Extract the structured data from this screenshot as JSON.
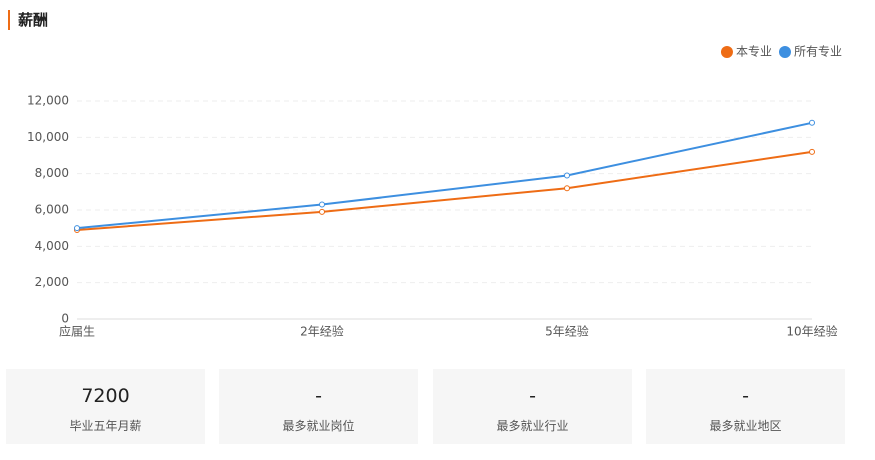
{
  "header": {
    "title": "薪酬"
  },
  "chart_data": {
    "type": "line",
    "categories": [
      "应届生",
      "2年经验",
      "5年经验",
      "10年经验"
    ],
    "series": [
      {
        "name": "本专业",
        "color": "#ee6c15",
        "values": [
          4900,
          5900,
          7200,
          9200
        ]
      },
      {
        "name": "所有专业",
        "color": "#3d8fe0",
        "values": [
          5000,
          6300,
          7900,
          10800
        ]
      }
    ],
    "ylim": [
      0,
      12000
    ],
    "yticks": [
      0,
      {
        "value": 2000,
        "label": "2,000"
      },
      {
        "value": 4000,
        "label": "4,000"
      },
      {
        "value": 6000,
        "label": "6,000"
      },
      {
        "value": 8000,
        "label": "8,000"
      },
      {
        "value": 10000,
        "label": "10,000"
      },
      {
        "value": 12000,
        "label": "12,000"
      }
    ],
    "grid": true,
    "legend": "top-right"
  },
  "cards": [
    {
      "value": "7200",
      "label": "毕业五年月薪"
    },
    {
      "value": "-",
      "label": "最多就业岗位"
    },
    {
      "value": "-",
      "label": "最多就业行业"
    },
    {
      "value": "-",
      "label": "最多就业地区"
    }
  ]
}
